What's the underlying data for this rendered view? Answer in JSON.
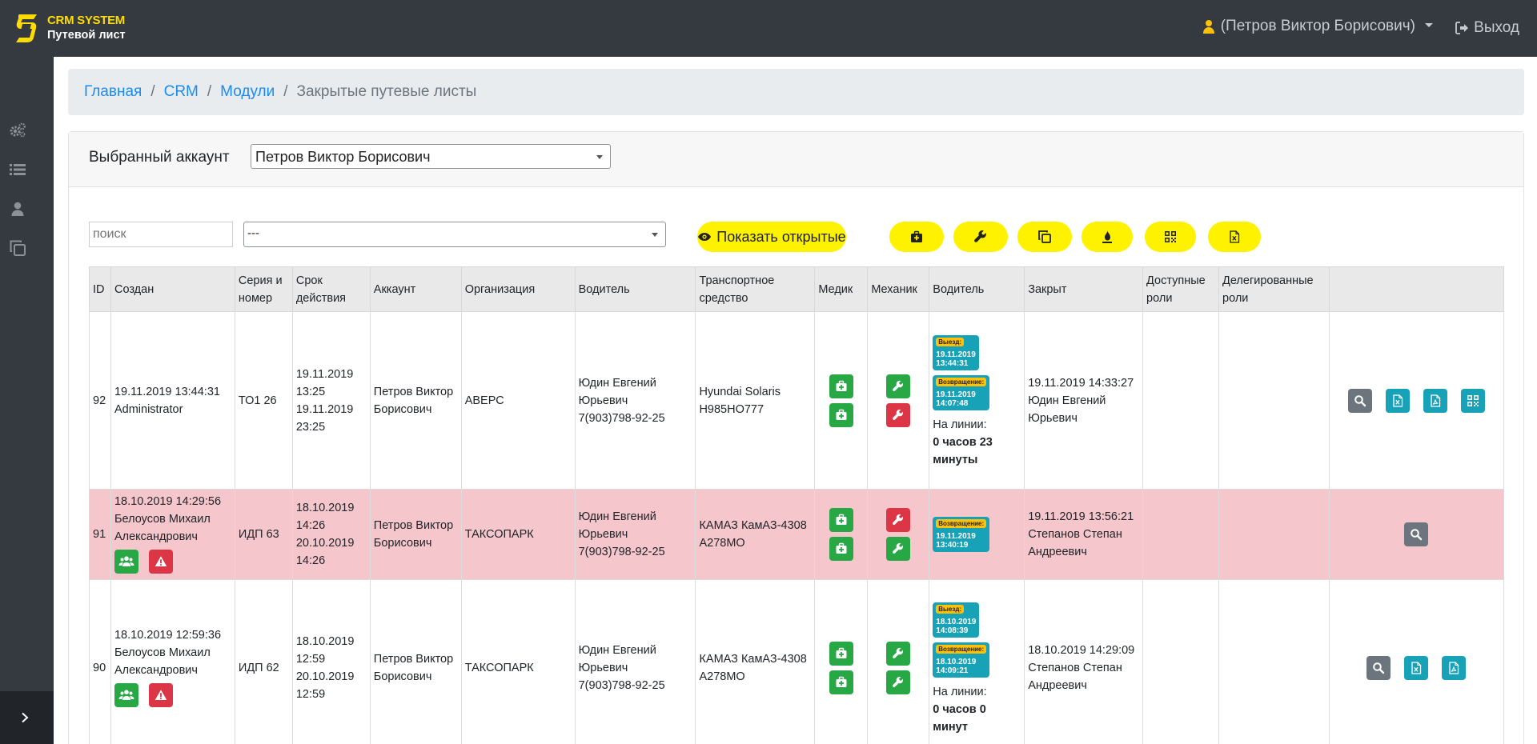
{
  "header": {
    "brand_title": "CRM SYSTEM",
    "brand_subtitle": "Путевой лист",
    "user": "(Петров Виктор Борисович)",
    "logout": "Выход"
  },
  "breadcrumb": {
    "items": [
      "Главная",
      "CRM",
      "Модули"
    ],
    "current": "Закрытые путевые листы"
  },
  "account": {
    "label": "Выбранный аккаунт",
    "value": "Петров Виктор Борисович"
  },
  "filters": {
    "search_placeholder": "поиск",
    "select_value": "---",
    "show_open": "Показать открытые"
  },
  "table": {
    "headers": [
      "ID",
      "Создан",
      "Серия и номер",
      "Срок действия",
      "Аккаунт",
      "Организация",
      "Водитель",
      "Транспортное средство",
      "Медик",
      "Механик",
      "Водитель",
      "Закрыт",
      "Доступные роли",
      "Делегированные роли",
      ""
    ],
    "exit_tag": "Выезд:",
    "return_tag": "Возвращение:",
    "online_label": "На линии:",
    "rows": [
      {
        "id": "92",
        "created_date": "19.11.2019 13:44:31",
        "created_by": "Administrator",
        "series": "ТО1 26",
        "valid_from": "19.11.2019 13:25",
        "valid_to": "19.11.2019 23:25",
        "account": "Петров Виктор Борисович",
        "org": "АВЕРС",
        "driver_name": "Юдин Евгений Юрьевич",
        "driver_phone": "7(903)798-92-25",
        "vehicle": "Hyundai Solaris",
        "plate": "Н985НО777",
        "exit_date": "19.11.2019",
        "exit_time": "13:44:31",
        "return_date": "19.11.2019",
        "return_time": "14:07:48",
        "online_value": "0 часов 23 минуты",
        "closed_date": "19.11.2019 14:33:27",
        "closed_by": "Юдин Евгений Юрьевич"
      },
      {
        "id": "91",
        "created_date": "18.10.2019 14:29:56",
        "created_by": "Белоусов Михаил Александрович",
        "series": "ИДП 63",
        "valid_from": "18.10.2019 14:26",
        "valid_to": "20.10.2019 14:26",
        "account": "Петров Виктор Борисович",
        "org": "ТАКСОПАРК",
        "driver_name": "Юдин Евгений Юрьевич",
        "driver_phone": "7(903)798-92-25",
        "vehicle": "КАМАЗ КамАЗ-4308",
        "plate": "А278МО",
        "return_date": "19.11.2019",
        "return_time": "13:40:19",
        "closed_date": "19.11.2019 13:56:21",
        "closed_by": "Степанов Степан Андреевич"
      },
      {
        "id": "90",
        "created_date": "18.10.2019 12:59:36",
        "created_by": "Белоусов Михаил Александрович",
        "series": "ИДП 62",
        "valid_from": "18.10.2019 12:59",
        "valid_to": "20.10.2019 12:59",
        "account": "Петров Виктор Борисович",
        "org": "ТАКСОПАРК",
        "driver_name": "Юдин Евгений Юрьевич",
        "driver_phone": "7(903)798-92-25",
        "vehicle": "КАМАЗ КамАЗ-4308",
        "plate": "А278МО",
        "exit_date": "18.10.2019",
        "exit_time": "14:08:39",
        "return_date": "18.10.2019",
        "return_time": "14:09:21",
        "online_value": "0 часов 0 минут",
        "closed_date": "18.10.2019 14:29:09",
        "closed_by": "Степанов Степан Андреевич"
      }
    ]
  },
  "colors": {
    "accent_yellow": "#fff200",
    "green": "#28a745",
    "red": "#dc3545",
    "teal": "#17a2b8",
    "gray": "#6c757d",
    "pink_row": "#f5c6cb"
  }
}
